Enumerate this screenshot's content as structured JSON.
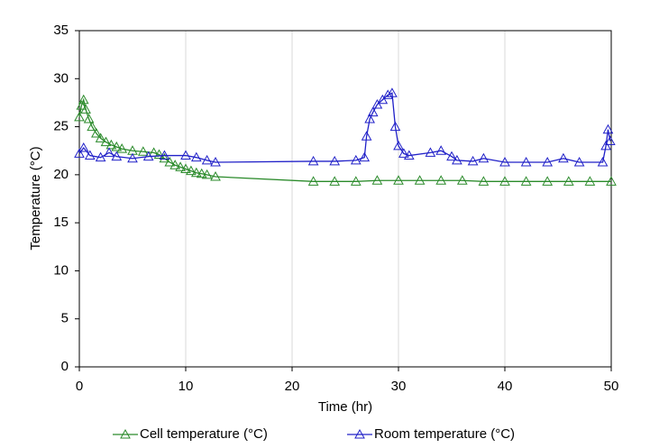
{
  "chart_data": {
    "type": "line",
    "x_label": "Time (hr)",
    "y_label": "Temperature (°C)",
    "xlim": [
      0,
      50
    ],
    "xticks": [
      0,
      10,
      20,
      30,
      40,
      50
    ],
    "ylim": [
      0,
      35
    ],
    "yticks": [
      0,
      5,
      10,
      15,
      20,
      25,
      30,
      35
    ],
    "grid": "x",
    "legend": "bottom",
    "series": [
      {
        "name": "Cell temperature (°C)",
        "color": "#2a8a2a",
        "x": [
          0,
          0.2,
          0.4,
          0.6,
          0.9,
          1.2,
          1.6,
          2,
          2.5,
          3,
          3.5,
          4,
          5,
          6,
          7,
          7.5,
          8,
          8.5,
          9,
          9.5,
          10,
          10.5,
          11,
          11.5,
          12,
          12.8,
          22,
          24,
          26,
          28,
          30,
          32,
          34,
          36,
          38,
          40,
          42,
          44,
          46,
          48,
          50
        ],
        "values": [
          26,
          27.2,
          27.8,
          26.8,
          25.8,
          25,
          24.3,
          23.8,
          23.4,
          23.1,
          22.9,
          22.7,
          22.5,
          22.4,
          22.3,
          22.1,
          21.7,
          21.3,
          21,
          20.8,
          20.6,
          20.4,
          20.2,
          20.1,
          20,
          19.8,
          19.3,
          19.3,
          19.3,
          19.4,
          19.4,
          19.4,
          19.4,
          19.4,
          19.3,
          19.3,
          19.3,
          19.3,
          19.3,
          19.3,
          19.3
        ]
      },
      {
        "name": "Room temperature (°C)",
        "color": "#2020c8",
        "x": [
          0,
          0.4,
          1,
          2,
          2.8,
          3.5,
          5,
          6.5,
          8,
          10,
          11,
          12,
          12.8,
          22,
          24,
          26,
          26.8,
          27,
          27.3,
          27.6,
          28,
          28.5,
          29,
          29.4,
          29.7,
          30,
          30.5,
          31,
          33,
          34,
          35,
          35.5,
          37,
          38,
          40,
          42,
          44,
          45.5,
          47,
          49.2,
          49.5,
          49.7,
          49.9
        ],
        "values": [
          22.2,
          22.8,
          22,
          21.8,
          22.3,
          21.9,
          21.7,
          21.9,
          22,
          22,
          21.8,
          21.5,
          21.3,
          21.4,
          21.4,
          21.5,
          21.8,
          24,
          25.8,
          26.5,
          27.3,
          27.8,
          28.3,
          28.5,
          25,
          23,
          22.2,
          22,
          22.3,
          22.5,
          21.9,
          21.5,
          21.4,
          21.7,
          21.3,
          21.3,
          21.3,
          21.7,
          21.3,
          21.3,
          23,
          24.7,
          23.5
        ]
      }
    ]
  }
}
